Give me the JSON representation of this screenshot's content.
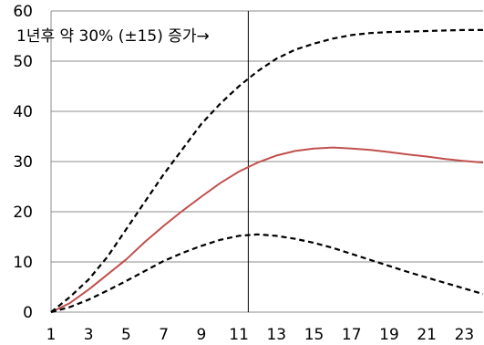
{
  "chart_data": {
    "type": "line",
    "annotation": "1년후 약 30% (±15) 증가→",
    "x_ticks": [
      "1",
      "3",
      "5",
      "7",
      "9",
      "11",
      "13",
      "15",
      "17",
      "19",
      "21",
      "23"
    ],
    "y_ticks": [
      "0",
      "10",
      "20",
      "30",
      "40",
      "50",
      "60"
    ],
    "xlim": [
      1,
      24
    ],
    "ylim": [
      0,
      60
    ],
    "grid": true,
    "vertical_marker_x": 11.5,
    "colors": {
      "central": "#c0504d",
      "bound": "#000000",
      "grid": "#8c8c8c",
      "marker": "#000000"
    },
    "series": [
      {
        "style": "solid",
        "x": [
          1,
          2,
          3,
          4,
          5,
          6,
          7,
          8,
          9,
          10,
          11,
          12,
          13,
          14,
          15,
          16,
          17,
          18,
          19,
          20,
          21,
          22,
          23,
          24
        ],
        "values": [
          0,
          1.8,
          4.5,
          7.5,
          10.5,
          14,
          17.2,
          20.2,
          23,
          25.7,
          28,
          29.8,
          31.2,
          32.1,
          32.6,
          32.8,
          32.6,
          32.3,
          31.9,
          31.4,
          31,
          30.5,
          30.1,
          29.8
        ]
      },
      {
        "style": "dashed",
        "x": [
          1,
          2,
          3,
          4,
          5,
          6,
          7,
          8,
          9,
          10,
          11,
          12,
          13,
          14,
          15,
          16,
          17,
          18,
          19,
          20,
          21,
          22,
          23,
          24
        ],
        "values": [
          0,
          3,
          6.5,
          11,
          16.5,
          22,
          27.5,
          32.5,
          37.5,
          41.5,
          45,
          48,
          50.5,
          52.3,
          53.5,
          54.5,
          55.2,
          55.6,
          55.8,
          55.9,
          56,
          56.1,
          56.2,
          56.2
        ]
      },
      {
        "style": "dashed",
        "x": [
          1,
          2,
          3,
          4,
          5,
          6,
          7,
          8,
          9,
          10,
          11,
          12,
          13,
          14,
          15,
          16,
          17,
          18,
          19,
          20,
          21,
          22,
          23,
          24
        ],
        "values": [
          0,
          1,
          2.5,
          4.3,
          6.2,
          8.2,
          10.2,
          11.8,
          13.2,
          14.4,
          15.2,
          15.5,
          15.2,
          14.6,
          13.8,
          12.8,
          11.6,
          10.4,
          9.2,
          8,
          6.9,
          5.8,
          4.7,
          3.6
        ]
      }
    ]
  }
}
